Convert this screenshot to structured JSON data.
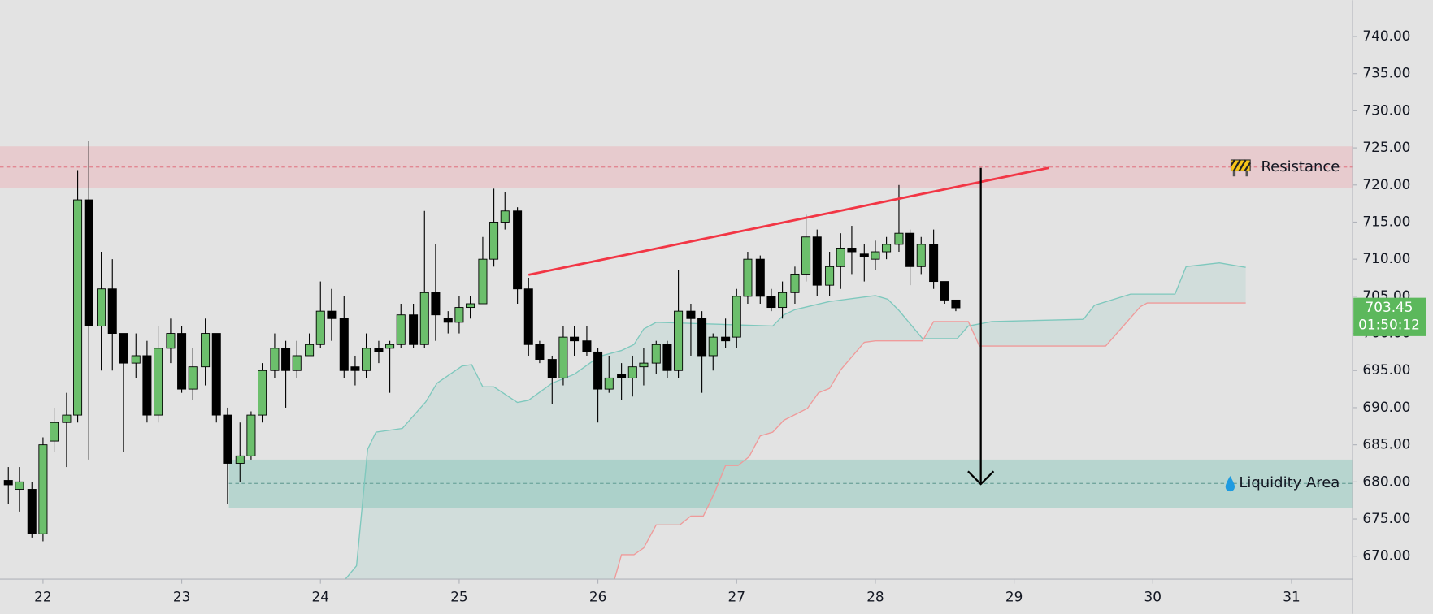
{
  "chart_data": {
    "type": "candlestick",
    "x": [
      21.75,
      21.83,
      21.92,
      22,
      22.08,
      22.17,
      22.25,
      22.33,
      22.42,
      22.5,
      22.58,
      22.67,
      22.75,
      22.83,
      22.92,
      23,
      23.08,
      23.17,
      23.25,
      23.33,
      23.42,
      23.5,
      23.58,
      23.67,
      23.75,
      23.83,
      23.92,
      24,
      24.08,
      24.17,
      24.25,
      24.33,
      24.42,
      24.5,
      24.58,
      24.67,
      24.75,
      24.83,
      24.92,
      25,
      25.08,
      25.17,
      25.25,
      25.33,
      25.42,
      25.5,
      25.58,
      25.67,
      25.75,
      25.83,
      25.92,
      26,
      26.08,
      26.17,
      26.25,
      26.33,
      26.42,
      26.5,
      26.58,
      26.67,
      26.75,
      26.83,
      26.92,
      27,
      27.08,
      27.17,
      27.25,
      27.33,
      27.42,
      27.5,
      27.58,
      27.67,
      27.75,
      27.83,
      27.92,
      28,
      28.08,
      28.17,
      28.25,
      28.33,
      28.42,
      28.5,
      28.58
    ],
    "open": [
      680.2,
      679,
      679,
      673,
      685.5,
      688,
      689,
      718,
      701,
      706,
      700,
      696,
      697,
      689,
      698,
      700,
      692.5,
      695.5,
      700,
      689,
      682.5,
      683.5,
      689,
      695,
      698,
      695,
      697,
      698.5,
      703,
      702,
      695.5,
      695,
      698,
      698,
      698.5,
      702.5,
      698.5,
      705.5,
      702,
      701.5,
      703.5,
      704,
      710,
      715,
      716.5,
      706,
      698.5,
      696.5,
      694,
      699.5,
      699,
      697.5,
      692.5,
      694.5,
      694,
      695.5,
      696,
      698.5,
      695,
      703,
      702,
      697,
      699.5,
      699.5,
      705,
      710,
      705,
      703.5,
      705.5,
      708,
      713,
      706.5,
      709,
      711.5,
      710.7,
      710,
      711,
      712,
      713.5,
      709,
      712,
      707,
      704.5
    ],
    "high": [
      682,
      682,
      680,
      686,
      690,
      692,
      722,
      726,
      711,
      710,
      700,
      700,
      699,
      701,
      702,
      701,
      698,
      702,
      700,
      690,
      688,
      689.5,
      696,
      700,
      699,
      699,
      700,
      707,
      706,
      705,
      697,
      700,
      699,
      699,
      704,
      704,
      716.5,
      712,
      703,
      705,
      705,
      713,
      719.5,
      719,
      717,
      707.5,
      699,
      697,
      701,
      701,
      701,
      698,
      697,
      696,
      697,
      698,
      699,
      699,
      708.5,
      704,
      703,
      700,
      702,
      706,
      711,
      710.5,
      706,
      707,
      709,
      716,
      714,
      711,
      713.5,
      714.5,
      712,
      712.5,
      713,
      720,
      714,
      713,
      714,
      707,
      704.5
    ],
    "low": [
      677,
      676,
      672.5,
      672,
      684,
      682,
      688,
      683,
      695,
      695,
      684,
      694,
      688,
      688,
      696,
      692,
      691,
      693,
      688,
      677,
      680,
      683,
      688,
      694,
      690,
      694,
      697,
      698,
      699,
      694,
      693,
      694,
      696,
      692,
      698,
      698,
      698,
      699,
      700,
      700,
      702,
      704,
      709,
      714,
      704,
      697,
      696,
      690.5,
      693,
      697,
      697,
      688,
      692,
      691,
      691.5,
      693,
      694.5,
      694,
      694,
      697,
      692,
      695,
      698,
      698,
      704,
      704,
      703,
      702,
      704,
      707,
      705,
      705,
      706,
      708,
      707,
      708.5,
      710,
      711,
      706.5,
      708,
      706,
      704,
      703
    ],
    "close": [
      679.6,
      680,
      673,
      685,
      688,
      689,
      718,
      701,
      706,
      700,
      696,
      697,
      689,
      698,
      700,
      692.5,
      695.5,
      700,
      689,
      682.5,
      683.5,
      689,
      695,
      698,
      695,
      697,
      698.5,
      703,
      702,
      695,
      695,
      698,
      697.5,
      698.5,
      702.5,
      698.5,
      705.5,
      702.5,
      701.5,
      703.5,
      704,
      710,
      715,
      716.5,
      706,
      698.5,
      696.5,
      694,
      699.5,
      699,
      697.5,
      692.5,
      694,
      694,
      695.5,
      696,
      698.5,
      695,
      703,
      702,
      697,
      699.5,
      699,
      705,
      710,
      705,
      703.5,
      705.5,
      708,
      713,
      706.5,
      709,
      711.5,
      711,
      710.3,
      711,
      712,
      713.5,
      709,
      712,
      707,
      704.5,
      703.45
    ],
    "up_color": "#6cbf6c",
    "down_color": "#000000",
    "xlim": [
      21.69,
      31.44
    ],
    "xticks": [
      22,
      23,
      24,
      25,
      26,
      27,
      28,
      29,
      30,
      31
    ],
    "ylim": [
      666.9,
      744.9
    ],
    "yticks": [
      {
        "value": 670,
        "label": "670.00"
      },
      {
        "value": 675,
        "label": "675.00"
      },
      {
        "value": 680,
        "label": "680.00"
      },
      {
        "value": 685,
        "label": "685.00"
      },
      {
        "value": 690,
        "label": "690.00"
      },
      {
        "value": 695,
        "label": "695.00"
      },
      {
        "value": 700,
        "label": "700.00"
      },
      {
        "value": 705,
        "label": "705.00"
      },
      {
        "value": 710,
        "label": "710.00"
      },
      {
        "value": 715,
        "label": "715.00"
      },
      {
        "value": 720,
        "label": "720.00"
      },
      {
        "value": 725,
        "label": "725.00"
      },
      {
        "value": 730,
        "label": "730.00"
      },
      {
        "value": 735,
        "label": "735.00"
      },
      {
        "value": 740,
        "label": "740.00"
      }
    ],
    "countdown": "01:50:12",
    "price_tag_color": "#5cb85c",
    "cloud": {
      "span_a": {
        "color": "#7ec8bd",
        "x": [
          24.18,
          24.26,
          24.34,
          24.4,
          24.59,
          24.76,
          24.84,
          25.02,
          25.09,
          25.17,
          25.25,
          25.42,
          25.5,
          25.67,
          25.83,
          26.01,
          26.17,
          26.26,
          26.33,
          26.42,
          27.26,
          27.34,
          27.42,
          27.67,
          28.0,
          28.09,
          28.17,
          28.34,
          28.59,
          28.67,
          28.84,
          29.5,
          29.58,
          29.84,
          30.16,
          30.24,
          30.48,
          30.67
        ],
        "values": [
          666.9,
          668.7,
          684.4,
          686.7,
          687.2,
          690.8,
          693.3,
          695.6,
          695.8,
          692.8,
          692.8,
          690.7,
          691.0,
          693.3,
          694.5,
          696.9,
          697.7,
          698.5,
          700.6,
          701.5,
          701.0,
          702.5,
          703.2,
          704.3,
          705.1,
          704.6,
          703.1,
          699.3,
          699.3,
          701.0,
          701.6,
          701.9,
          703.8,
          705.3,
          705.3,
          709.0,
          709.5,
          708.9
        ]
      },
      "span_b": {
        "color": "#ef9a9a",
        "x": [
          26.12,
          26.17,
          26.26,
          26.33,
          26.42,
          26.59,
          26.67,
          26.76,
          26.84,
          26.92,
          27.01,
          27.09,
          27.17,
          27.26,
          27.34,
          27.51,
          27.59,
          27.67,
          27.75,
          27.92,
          28.0,
          28.34,
          28.42,
          28.67,
          28.75,
          29.66,
          29.91,
          29.96,
          30.67
        ],
        "values": [
          666.9,
          670.2,
          670.2,
          671.1,
          674.2,
          674.2,
          675.4,
          675.4,
          678.5,
          682.2,
          682.2,
          683.4,
          686.2,
          686.7,
          688.3,
          689.9,
          692.0,
          692.6,
          695.1,
          698.8,
          699.0,
          699.0,
          701.6,
          701.6,
          698.3,
          698.3,
          703.6,
          704.1,
          704.1
        ]
      },
      "fill": "rgba(120,190,180,0.16)"
    },
    "zones": [
      {
        "label": "Resistance",
        "low": 719.6,
        "high": 725.2,
        "level": 722.4,
        "color": "rgba(242,140,150,0.28)",
        "line_color": "#e06070"
      },
      {
        "label": "Liquidity Area",
        "low": 676.5,
        "high": 683.0,
        "level": 679.8,
        "start": 23.34,
        "color": "rgba(100,185,170,0.35)",
        "line_color": "#4a8a80"
      }
    ],
    "trendline": {
      "x": [
        25.5,
        29.25
      ],
      "y": [
        707.9,
        722.3
      ],
      "color": "#f23645"
    },
    "arrow": {
      "x": 28.76,
      "from": 722.3,
      "to": 679.7
    }
  }
}
